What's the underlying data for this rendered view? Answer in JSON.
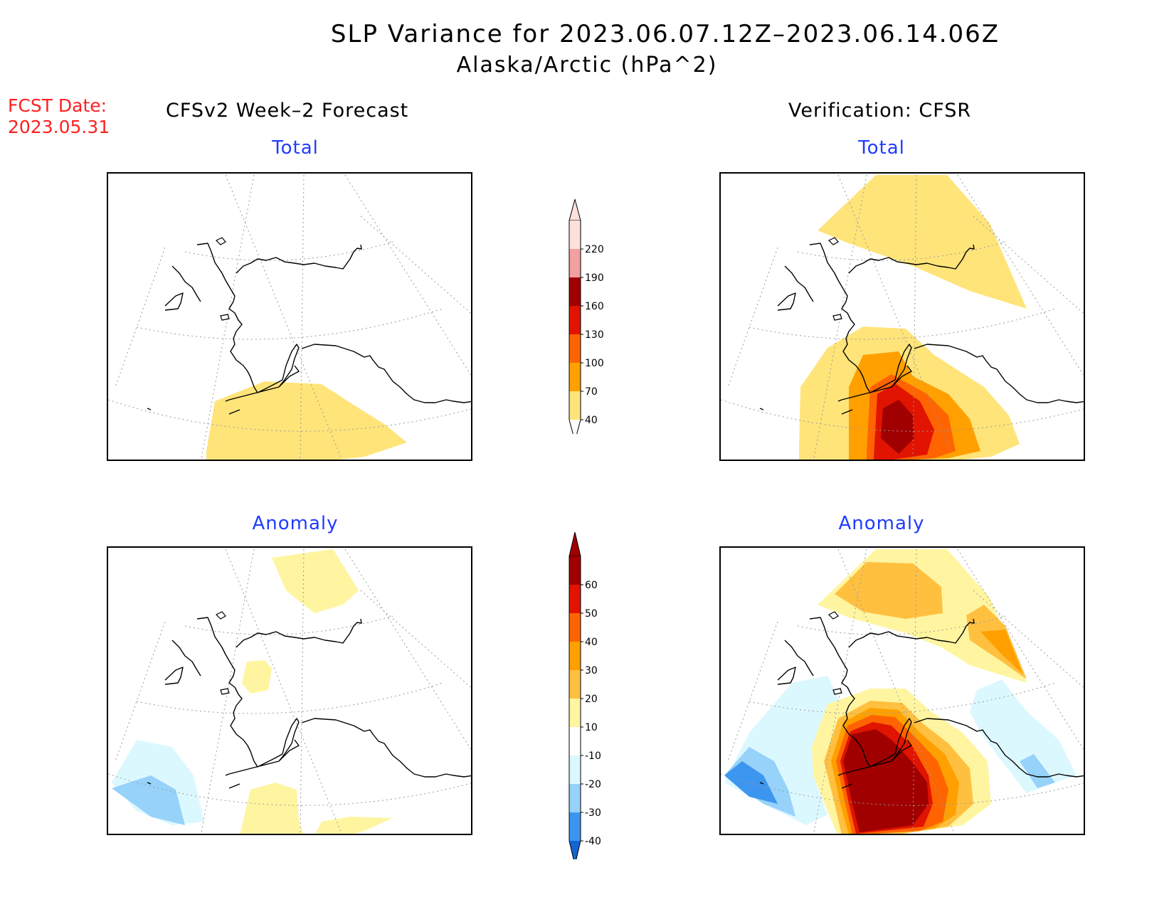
{
  "title": {
    "line1": "SLP Variance for 2023.06.07.12Z–2023.06.14.06Z",
    "line2": "Alaska/Arctic (hPa^2)"
  },
  "fcst_date": {
    "label": "FCST Date:",
    "value": "2023.05.31"
  },
  "columns": {
    "left": "CFSv2 Week–2 Forecast",
    "right": "Verification: CFSR"
  },
  "panels": {
    "forecast_total": {
      "label": "Total"
    },
    "verification_total": {
      "label": "Total"
    },
    "forecast_anomaly": {
      "label": "Anomaly"
    },
    "verification_anomaly": {
      "label": "Anomaly"
    }
  },
  "total_colorbar": {
    "levels": [
      {
        "label": "220",
        "color": "#fde0dc"
      },
      {
        "label": "190",
        "color": "#f2a0a0"
      },
      {
        "label": "160",
        "color": "#a00000"
      },
      {
        "label": "130",
        "color": "#e01400"
      },
      {
        "label": "100",
        "color": "#ff6400"
      },
      {
        "label": "70",
        "color": "#ffa000"
      },
      {
        "label": "40",
        "color": "#ffe47a"
      }
    ]
  },
  "anomaly_colorbar": {
    "levels": [
      {
        "label": "60",
        "color": "#a00000"
      },
      {
        "label": "50",
        "color": "#e01400"
      },
      {
        "label": "40",
        "color": "#ff6400"
      },
      {
        "label": "30",
        "color": "#ffa000"
      },
      {
        "label": "20",
        "color": "#ffc040"
      },
      {
        "label": "10",
        "color": "#fff5a0"
      },
      {
        "label": "-10",
        "color": "#ffffff"
      },
      {
        "label": "-20",
        "color": "#dcf8ff"
      },
      {
        "label": "-30",
        "color": "#96d2fa"
      },
      {
        "label": "-40",
        "color": "#3c96f0"
      }
    ],
    "below_color": "#1464d2"
  },
  "colors": {
    "title_text": "#000000",
    "fcst_text": "#ff2020",
    "panel_label": "#1f3cff"
  }
}
